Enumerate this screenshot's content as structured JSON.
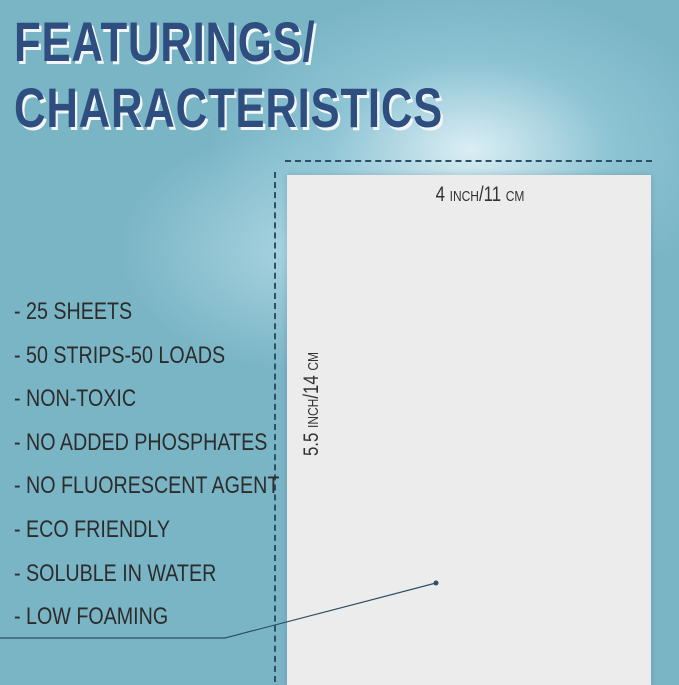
{
  "title": {
    "line1": "FEATURINGS/",
    "line2": "CHARACTERISTICS"
  },
  "dimensions": {
    "width": {
      "value": "4",
      "unit1": "INCH",
      "sep": "/11",
      "unit2": "CM"
    },
    "height": {
      "value": "5.5",
      "unit1": "INCH",
      "sep": "/14",
      "unit2": "CM"
    }
  },
  "features": [
    "- 25 SHEETS",
    "- 50 STRIPS-50 LOADS",
    "- NON-TOXIC",
    "- NO ADDED PHOSPHATES",
    "- NO FLUORESCENT AGENT",
    "- ECO FRIENDLY",
    "- SOLUBLE IN WATER",
    "- LOW FOAMING"
  ],
  "colors": {
    "background": "#7ab5c6",
    "title": "#2f4e80",
    "paper": "#ececec"
  }
}
